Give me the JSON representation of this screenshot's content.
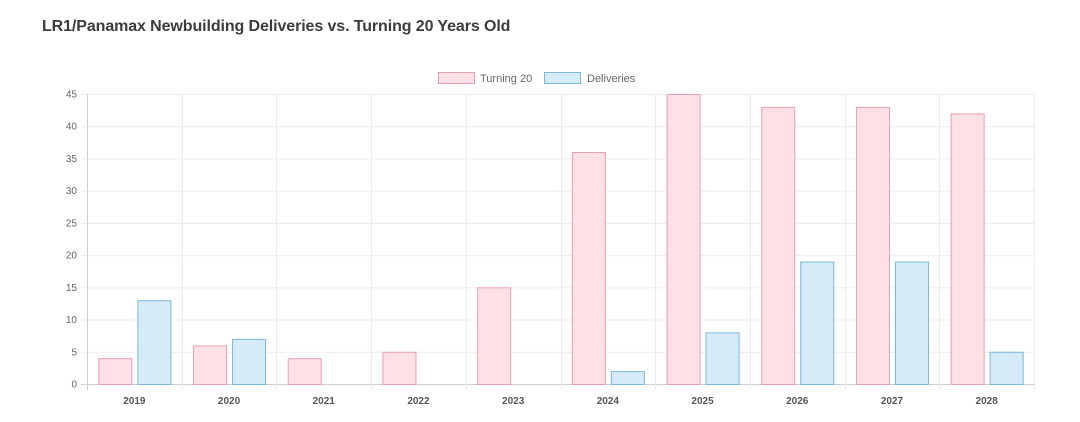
{
  "chart_data": {
    "type": "bar",
    "title": "LR1/Panamax Newbuilding Deliveries vs. Turning 20 Years Old",
    "categories": [
      "2019",
      "2020",
      "2021",
      "2022",
      "2023",
      "2024",
      "2025",
      "2026",
      "2027",
      "2028"
    ],
    "series": [
      {
        "name": "Turning 20",
        "values": [
          4,
          6,
          4,
          5,
          15,
          36,
          45,
          43,
          43,
          42
        ],
        "fill": "#ffe0e6",
        "stroke": "#e8a0b0"
      },
      {
        "name": "Deliveries",
        "values": [
          13,
          7,
          0,
          0,
          0,
          2,
          8,
          19,
          19,
          5
        ],
        "fill": "#d6ebf8",
        "stroke": "#7ab8dc"
      }
    ],
    "ylim": [
      0,
      45
    ],
    "yticks": [
      0,
      5,
      10,
      15,
      20,
      25,
      30,
      35,
      40,
      45
    ],
    "xlabel": "",
    "ylabel": "",
    "grid": true,
    "legend_position": "top-center"
  }
}
